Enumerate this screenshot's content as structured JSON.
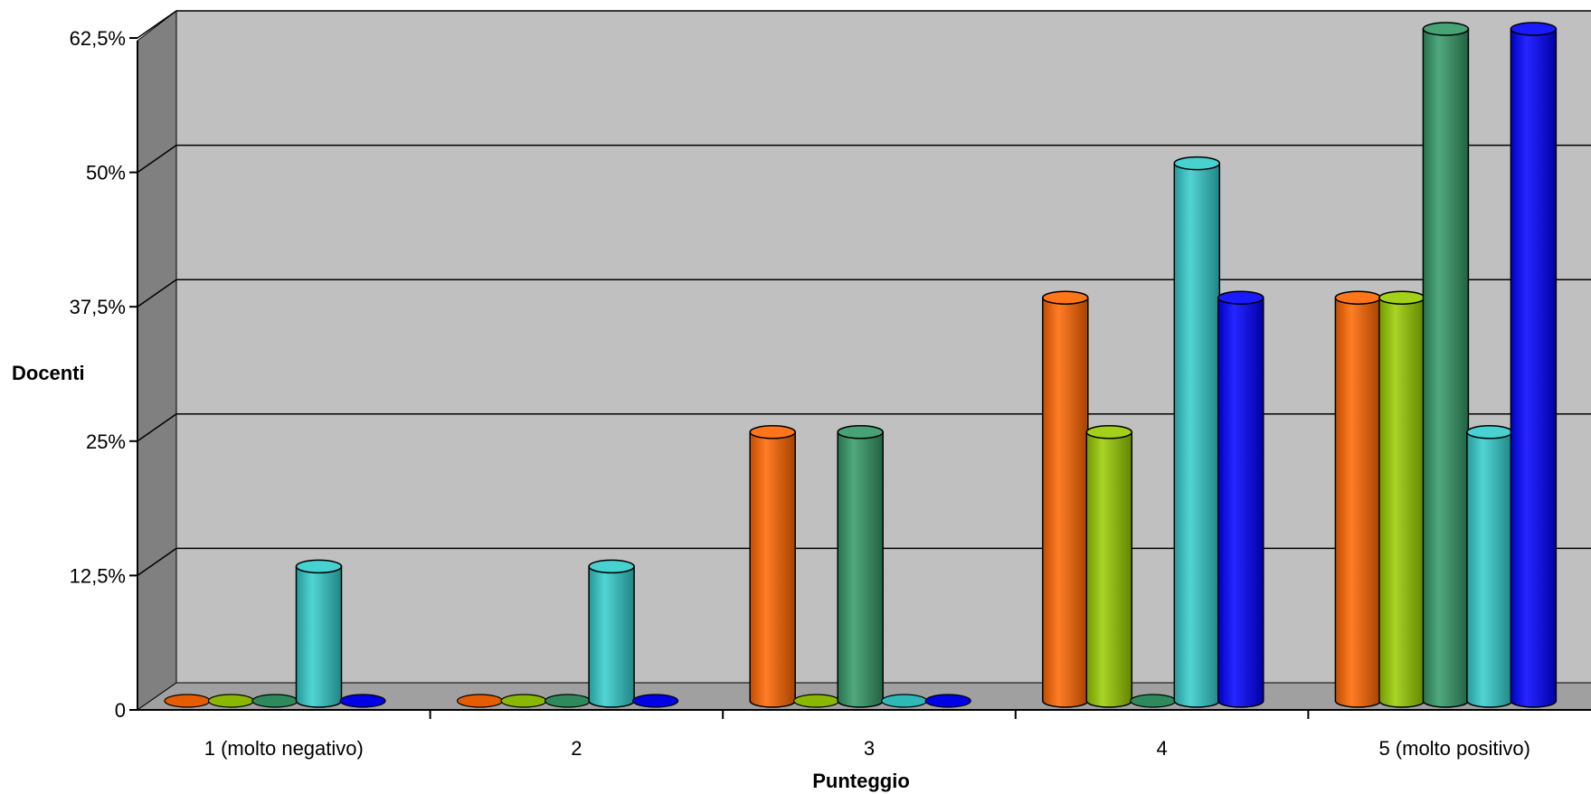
{
  "chart_data": {
    "type": "bar",
    "style": "3d-cylinder",
    "title": "",
    "xlabel": "Punteggio",
    "ylabel": "Docenti",
    "categories": [
      "1 (molto negativo)",
      "2",
      "3",
      "4",
      "5 (molto positivo)"
    ],
    "y_ticks": [
      "0",
      "12,5%",
      "25%",
      "37,5%",
      "50%",
      "62,5%"
    ],
    "ylim": [
      0,
      62.5
    ],
    "grid": true,
    "legend": "none",
    "series": [
      {
        "color": "#ff6600",
        "values": [
          0,
          0,
          25,
          37.5,
          37.5
        ]
      },
      {
        "color": "#99cc00",
        "values": [
          0,
          0,
          0,
          25,
          37.5
        ]
      },
      {
        "color": "#339966",
        "values": [
          0,
          0,
          25,
          0,
          62.5
        ]
      },
      {
        "color": "#33cccc",
        "values": [
          12.5,
          12.5,
          0,
          50,
          25
        ]
      },
      {
        "color": "#0000ff",
        "values": [
          0,
          0,
          0,
          37.5,
          62.5
        ]
      }
    ],
    "colors": {
      "wall": "#c0c0c0",
      "floor": "#a0a0a0",
      "side_wall": "#808080"
    }
  }
}
